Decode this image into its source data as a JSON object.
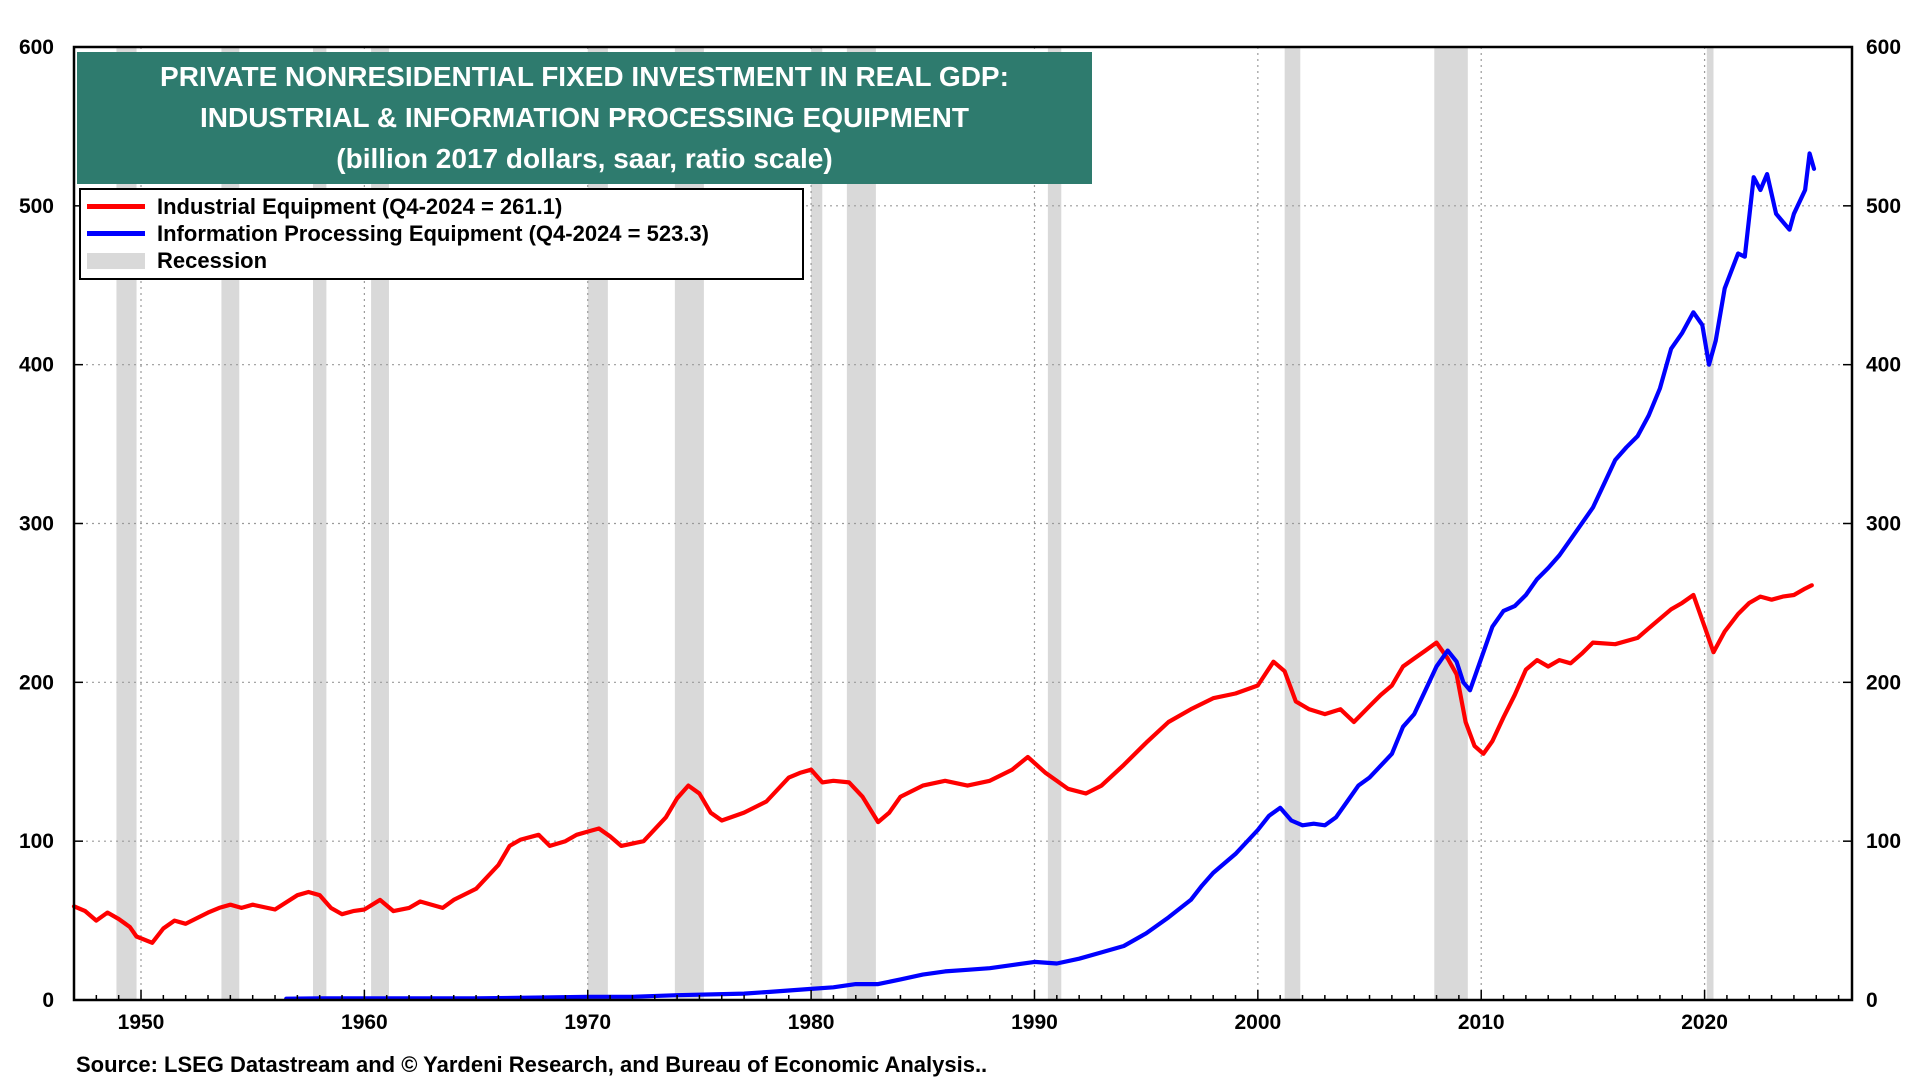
{
  "chart_data": {
    "type": "line",
    "title": [
      "PRIVATE NONRESIDENTIAL FIXED INVESTMENT IN REAL GDP:",
      "INDUSTRIAL & INFORMATION PROCESSING EQUIPMENT",
      "(billion 2017 dollars, saar, ratio scale)"
    ],
    "source": "Source: LSEG Datastream and © Yardeni Research, and Bureau of Economic Analysis..",
    "xlim": [
      1947,
      2026.6
    ],
    "ylim": [
      0,
      600
    ],
    "x_ticks": [
      1950,
      1960,
      1970,
      1980,
      1990,
      2000,
      2010,
      2020
    ],
    "y_ticks": [
      0,
      100,
      200,
      300,
      400,
      500,
      600
    ],
    "grid": true,
    "legend_position": "top-left",
    "recession_label": "Recession",
    "recession_color": "#d9d9d9",
    "recessions": [
      [
        1948.9,
        1949.8
      ],
      [
        1953.6,
        1954.4
      ],
      [
        1957.7,
        1958.3
      ],
      [
        1960.3,
        1961.1
      ],
      [
        1970.0,
        1970.9
      ],
      [
        1973.9,
        1975.2
      ],
      [
        1980.0,
        1980.5
      ],
      [
        1981.6,
        1982.9
      ],
      [
        1990.6,
        1991.2
      ],
      [
        2001.2,
        2001.9
      ],
      [
        2007.9,
        2009.4
      ],
      [
        2020.1,
        2020.4
      ]
    ],
    "series": [
      {
        "name": "Industrial Equipment  (Q4-2024 = 261.1)",
        "color": "#ff0000",
        "points": [
          [
            1947.0,
            59
          ],
          [
            1947.5,
            56
          ],
          [
            1948.0,
            50
          ],
          [
            1948.5,
            55
          ],
          [
            1949.0,
            51
          ],
          [
            1949.5,
            46
          ],
          [
            1949.8,
            40
          ],
          [
            1950.5,
            36
          ],
          [
            1951.0,
            45
          ],
          [
            1951.5,
            50
          ],
          [
            1952.0,
            48
          ],
          [
            1953.0,
            55
          ],
          [
            1953.5,
            58
          ],
          [
            1954.0,
            60
          ],
          [
            1954.5,
            58
          ],
          [
            1955.0,
            60
          ],
          [
            1956.0,
            57
          ],
          [
            1957.0,
            66
          ],
          [
            1957.5,
            68
          ],
          [
            1958.0,
            66
          ],
          [
            1958.5,
            58
          ],
          [
            1959.0,
            54
          ],
          [
            1959.5,
            56
          ],
          [
            1960.0,
            57
          ],
          [
            1960.7,
            63
          ],
          [
            1961.3,
            56
          ],
          [
            1962.0,
            58
          ],
          [
            1962.5,
            62
          ],
          [
            1963.5,
            58
          ],
          [
            1964.0,
            63
          ],
          [
            1965.0,
            70
          ],
          [
            1966.0,
            85
          ],
          [
            1966.5,
            97
          ],
          [
            1967.0,
            101
          ],
          [
            1967.8,
            104
          ],
          [
            1968.3,
            97
          ],
          [
            1969.0,
            100
          ],
          [
            1969.5,
            104
          ],
          [
            1970.0,
            106
          ],
          [
            1970.5,
            108
          ],
          [
            1971.0,
            103
          ],
          [
            1971.5,
            97
          ],
          [
            1972.5,
            100
          ],
          [
            1973.5,
            115
          ],
          [
            1974.0,
            127
          ],
          [
            1974.5,
            135
          ],
          [
            1975.0,
            130
          ],
          [
            1975.5,
            118
          ],
          [
            1976.0,
            113
          ],
          [
            1977.0,
            118
          ],
          [
            1978.0,
            125
          ],
          [
            1979.0,
            140
          ],
          [
            1979.5,
            143
          ],
          [
            1980.0,
            145
          ],
          [
            1980.5,
            137
          ],
          [
            1981.0,
            138
          ],
          [
            1981.7,
            137
          ],
          [
            1982.3,
            128
          ],
          [
            1983.0,
            112
          ],
          [
            1983.5,
            118
          ],
          [
            1984.0,
            128
          ],
          [
            1985.0,
            135
          ],
          [
            1986.0,
            138
          ],
          [
            1987.0,
            135
          ],
          [
            1988.0,
            138
          ],
          [
            1989.0,
            145
          ],
          [
            1989.7,
            153
          ],
          [
            1990.5,
            143
          ],
          [
            1991.0,
            138
          ],
          [
            1991.5,
            133
          ],
          [
            1992.3,
            130
          ],
          [
            1993.0,
            135
          ],
          [
            1994.0,
            148
          ],
          [
            1995.0,
            162
          ],
          [
            1996.0,
            175
          ],
          [
            1997.0,
            183
          ],
          [
            1998.0,
            190
          ],
          [
            1999.0,
            193
          ],
          [
            2000.0,
            198
          ],
          [
            2000.7,
            213
          ],
          [
            2001.2,
            207
          ],
          [
            2001.7,
            188
          ],
          [
            2002.3,
            183
          ],
          [
            2003.0,
            180
          ],
          [
            2003.7,
            183
          ],
          [
            2004.3,
            175
          ],
          [
            2005.0,
            185
          ],
          [
            2005.5,
            192
          ],
          [
            2006.0,
            198
          ],
          [
            2006.5,
            210
          ],
          [
            2007.0,
            215
          ],
          [
            2007.5,
            220
          ],
          [
            2008.0,
            225
          ],
          [
            2008.5,
            215
          ],
          [
            2008.9,
            205
          ],
          [
            2009.3,
            175
          ],
          [
            2009.7,
            160
          ],
          [
            2010.1,
            155
          ],
          [
            2010.5,
            163
          ],
          [
            2011.0,
            178
          ],
          [
            2011.5,
            192
          ],
          [
            2012.0,
            208
          ],
          [
            2012.5,
            214
          ],
          [
            2013.0,
            210
          ],
          [
            2013.5,
            214
          ],
          [
            2014.0,
            212
          ],
          [
            2014.5,
            218
          ],
          [
            2015.0,
            225
          ],
          [
            2016.0,
            224
          ],
          [
            2017.0,
            228
          ],
          [
            2017.5,
            234
          ],
          [
            2018.0,
            240
          ],
          [
            2018.5,
            246
          ],
          [
            2019.0,
            250
          ],
          [
            2019.5,
            255
          ],
          [
            2020.0,
            235
          ],
          [
            2020.4,
            219
          ],
          [
            2020.9,
            232
          ],
          [
            2021.5,
            243
          ],
          [
            2022.0,
            250
          ],
          [
            2022.5,
            254
          ],
          [
            2023.0,
            252
          ],
          [
            2023.5,
            254
          ],
          [
            2024.0,
            255
          ],
          [
            2024.5,
            259
          ],
          [
            2024.8,
            261.1
          ]
        ]
      },
      {
        "name": "Information Processing Equipment  (Q4-2024 = 523.3)",
        "color": "#0000ff",
        "points": [
          [
            1956.5,
            0.8
          ],
          [
            1958.0,
            1
          ],
          [
            1960.0,
            1
          ],
          [
            1965.0,
            1
          ],
          [
            1970.0,
            2
          ],
          [
            1972.0,
            2
          ],
          [
            1974.0,
            3
          ],
          [
            1977.0,
            4
          ],
          [
            1978.0,
            5
          ],
          [
            1979.0,
            6
          ],
          [
            1980.0,
            7
          ],
          [
            1981.0,
            8
          ],
          [
            1982.0,
            10
          ],
          [
            1983.0,
            10
          ],
          [
            1984.0,
            13
          ],
          [
            1985.0,
            16
          ],
          [
            1986.0,
            18
          ],
          [
            1987.0,
            19
          ],
          [
            1988.0,
            20
          ],
          [
            1989.0,
            22
          ],
          [
            1990.0,
            24
          ],
          [
            1991.0,
            23
          ],
          [
            1992.0,
            26
          ],
          [
            1993.0,
            30
          ],
          [
            1994.0,
            34
          ],
          [
            1995.0,
            42
          ],
          [
            1996.0,
            52
          ],
          [
            1997.0,
            63
          ],
          [
            1997.5,
            72
          ],
          [
            1998.0,
            80
          ],
          [
            1999.0,
            92
          ],
          [
            2000.0,
            107
          ],
          [
            2000.5,
            116
          ],
          [
            2001.0,
            121
          ],
          [
            2001.5,
            113
          ],
          [
            2002.0,
            110
          ],
          [
            2002.5,
            111
          ],
          [
            2003.0,
            110
          ],
          [
            2003.5,
            115
          ],
          [
            2004.0,
            125
          ],
          [
            2004.5,
            135
          ],
          [
            2005.0,
            140
          ],
          [
            2006.0,
            155
          ],
          [
            2006.5,
            172
          ],
          [
            2007.0,
            180
          ],
          [
            2007.5,
            195
          ],
          [
            2008.0,
            210
          ],
          [
            2008.5,
            220
          ],
          [
            2008.9,
            213
          ],
          [
            2009.2,
            200
          ],
          [
            2009.5,
            195
          ],
          [
            2010.0,
            215
          ],
          [
            2010.5,
            235
          ],
          [
            2011.0,
            245
          ],
          [
            2011.5,
            248
          ],
          [
            2012.0,
            255
          ],
          [
            2012.5,
            265
          ],
          [
            2013.0,
            272
          ],
          [
            2013.5,
            280
          ],
          [
            2014.0,
            290
          ],
          [
            2015.0,
            310
          ],
          [
            2015.5,
            325
          ],
          [
            2016.0,
            340
          ],
          [
            2016.5,
            348
          ],
          [
            2017.0,
            355
          ],
          [
            2017.5,
            368
          ],
          [
            2018.0,
            385
          ],
          [
            2018.5,
            410
          ],
          [
            2019.0,
            420
          ],
          [
            2019.5,
            433
          ],
          [
            2019.9,
            425
          ],
          [
            2020.2,
            400
          ],
          [
            2020.5,
            415
          ],
          [
            2020.9,
            448
          ],
          [
            2021.5,
            470
          ],
          [
            2021.8,
            468
          ],
          [
            2022.2,
            518
          ],
          [
            2022.5,
            510
          ],
          [
            2022.8,
            520
          ],
          [
            2023.2,
            495
          ],
          [
            2023.8,
            485
          ],
          [
            2024.0,
            495
          ],
          [
            2024.5,
            510
          ],
          [
            2024.7,
            533
          ],
          [
            2024.9,
            523.3
          ]
        ]
      }
    ]
  }
}
